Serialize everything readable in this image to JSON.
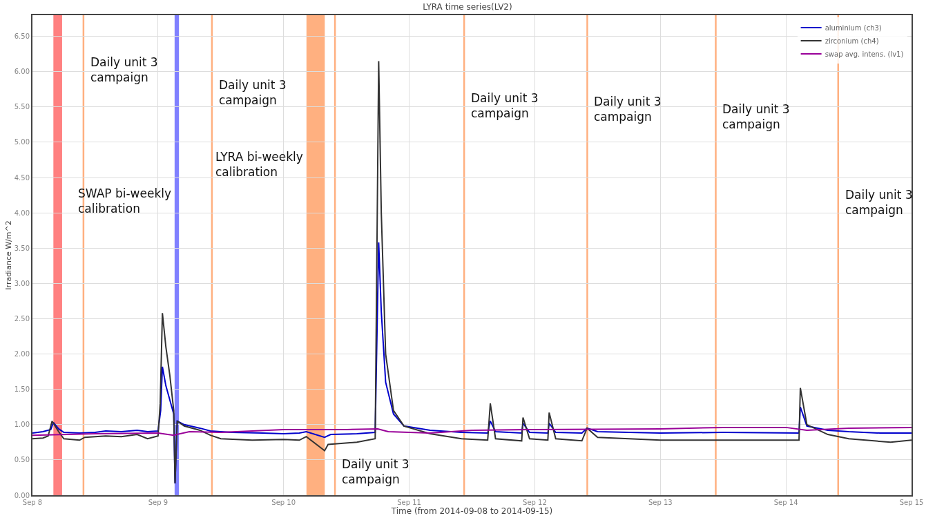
{
  "chart_data": {
    "type": "line",
    "title": "LYRA time series(LV2)",
    "xlabel": "Time (from 2014-09-08 to 2014-09-15)",
    "ylabel": "Irradiance W/m^2",
    "xlim": [
      "2014-09-08T00:00",
      "2014-09-15T00:00"
    ],
    "xticks": [
      {
        "value": "2014-09-08",
        "label": "Sep 8"
      },
      {
        "value": "2014-09-09",
        "label": "Sep 9"
      },
      {
        "value": "2014-09-10",
        "label": "Sep 10"
      },
      {
        "value": "2014-09-11",
        "label": "Sep 11"
      },
      {
        "value": "2014-09-12",
        "label": "Sep 12"
      },
      {
        "value": "2014-09-13",
        "label": "Sep 13"
      },
      {
        "value": "2014-09-14",
        "label": "Sep 14"
      },
      {
        "value": "2014-09-15",
        "label": "Sep 15"
      }
    ],
    "ylim": [
      0,
      6.8
    ],
    "yticks": [
      {
        "value": 0,
        "label": "0.00"
      },
      {
        "value": 0.5,
        "label": "0.50"
      },
      {
        "value": 1,
        "label": "1.00"
      },
      {
        "value": 1.5,
        "label": "1.50"
      },
      {
        "value": 2,
        "label": "2.00"
      },
      {
        "value": 2.5,
        "label": "2.50"
      },
      {
        "value": 3,
        "label": "3.00"
      },
      {
        "value": 3.5,
        "label": "3.50"
      },
      {
        "value": 4,
        "label": "4.00"
      },
      {
        "value": 4.5,
        "label": "4.50"
      },
      {
        "value": 5,
        "label": "5.00"
      },
      {
        "value": 5.5,
        "label": "5.50"
      },
      {
        "value": 6,
        "label": "6.00"
      },
      {
        "value": 6.5,
        "label": "6.50"
      }
    ],
    "grid": true,
    "legend": "top right",
    "marker": "none",
    "line_style": "solid",
    "series": [
      {
        "name": "aluminium (ch3)",
        "color": "#0000cc",
        "x": [
          "2014-09-08T00:00",
          "2014-09-08T02:00",
          "2014-09-08T03:30",
          "2014-09-08T04:00",
          "2014-09-08T05:00",
          "2014-09-08T06:00",
          "2014-09-08T09:00",
          "2014-09-08T12:00",
          "2014-09-08T14:00",
          "2014-09-08T17:00",
          "2014-09-08T20:00",
          "2014-09-08T22:00",
          "2014-09-09T00:00",
          "2014-09-09T00:30",
          "2014-09-09T00:50",
          "2014-09-09T01:30",
          "2014-09-09T02:15",
          "2014-09-09T03:00",
          "2014-09-09T03:15",
          "2014-09-09T03:40",
          "2014-09-09T05:00",
          "2014-09-09T08:00",
          "2014-09-09T10:00",
          "2014-09-09T14:00",
          "2014-09-09T20:00",
          "2014-09-10T00:00",
          "2014-09-10T03:00",
          "2014-09-10T04:20",
          "2014-09-10T07:50",
          "2014-09-10T09:00",
          "2014-09-10T14:00",
          "2014-09-10T17:30",
          "2014-09-10T18:10",
          "2014-09-10T18:40",
          "2014-09-10T19:30",
          "2014-09-10T21:00",
          "2014-09-10T23:00",
          "2014-09-11T04:00",
          "2014-09-11T10:00",
          "2014-09-11T15:00",
          "2014-09-11T15:30",
          "2014-09-11T16:30",
          "2014-09-11T21:30",
          "2014-09-11T21:45",
          "2014-09-11T23:00",
          "2014-09-12T02:30",
          "2014-09-12T02:45",
          "2014-09-12T04:00",
          "2014-09-12T09:00",
          "2014-09-12T10:00",
          "2014-09-12T12:00",
          "2014-09-13T00:00",
          "2014-09-13T12:00",
          "2014-09-14T02:30",
          "2014-09-14T02:45",
          "2014-09-14T04:00",
          "2014-09-14T08:00",
          "2014-09-14T12:00",
          "2014-09-14T18:00",
          "2014-09-15T00:00"
        ],
        "values": [
          0.88,
          0.9,
          0.93,
          1.03,
          0.94,
          0.89,
          0.88,
          0.89,
          0.91,
          0.9,
          0.92,
          0.9,
          0.91,
          1.2,
          1.82,
          1.55,
          1.35,
          1.15,
          0.17,
          1.05,
          1.0,
          0.95,
          0.91,
          0.89,
          0.88,
          0.87,
          0.88,
          0.9,
          0.82,
          0.86,
          0.87,
          0.89,
          3.58,
          2.6,
          1.6,
          1.15,
          0.98,
          0.92,
          0.89,
          0.88,
          1.05,
          0.9,
          0.88,
          1.02,
          0.89,
          0.88,
          1.02,
          0.89,
          0.88,
          0.95,
          0.9,
          0.88,
          0.89,
          0.88,
          1.25,
          0.98,
          0.92,
          0.9,
          0.88,
          0.88
        ]
      },
      {
        "name": "zirconium (ch4)",
        "color": "#333333",
        "x": [
          "2014-09-08T00:00",
          "2014-09-08T02:00",
          "2014-09-08T03:00",
          "2014-09-08T03:45",
          "2014-09-08T05:00",
          "2014-09-08T06:00",
          "2014-09-08T09:00",
          "2014-09-08T10:00",
          "2014-09-08T14:00",
          "2014-09-08T17:00",
          "2014-09-08T20:00",
          "2014-09-08T22:00",
          "2014-09-09T00:00",
          "2014-09-09T00:25",
          "2014-09-09T00:50",
          "2014-09-09T01:30",
          "2014-09-09T02:15",
          "2014-09-09T03:00",
          "2014-09-09T03:15",
          "2014-09-09T03:40",
          "2014-09-09T05:00",
          "2014-09-09T08:00",
          "2014-09-09T10:00",
          "2014-09-09T12:00",
          "2014-09-09T18:00",
          "2014-09-10T00:00",
          "2014-09-10T03:00",
          "2014-09-10T04:20",
          "2014-09-10T07:50",
          "2014-09-10T08:30",
          "2014-09-10T14:00",
          "2014-09-10T17:30",
          "2014-09-10T18:10",
          "2014-09-10T18:40",
          "2014-09-10T19:30",
          "2014-09-10T21:00",
          "2014-09-10T23:00",
          "2014-09-11T04:00",
          "2014-09-11T10:00",
          "2014-09-11T15:00",
          "2014-09-11T15:30",
          "2014-09-11T16:30",
          "2014-09-11T21:30",
          "2014-09-11T21:45",
          "2014-09-11T23:00",
          "2014-09-12T02:30",
          "2014-09-12T02:45",
          "2014-09-12T04:00",
          "2014-09-12T09:00",
          "2014-09-12T10:00",
          "2014-09-12T12:00",
          "2014-09-13T00:00",
          "2014-09-13T12:00",
          "2014-09-14T02:30",
          "2014-09-14T02:45",
          "2014-09-14T04:00",
          "2014-09-14T08:00",
          "2014-09-14T12:00",
          "2014-09-14T20:00",
          "2014-09-15T00:00"
        ],
        "values": [
          0.8,
          0.81,
          0.84,
          1.05,
          0.9,
          0.8,
          0.78,
          0.82,
          0.84,
          0.83,
          0.86,
          0.8,
          0.84,
          1.3,
          2.58,
          2.1,
          1.7,
          1.2,
          0.17,
          1.05,
          0.98,
          0.92,
          0.85,
          0.8,
          0.78,
          0.79,
          0.78,
          0.83,
          0.63,
          0.72,
          0.75,
          0.8,
          6.15,
          4.0,
          2.0,
          1.2,
          0.98,
          0.87,
          0.8,
          0.78,
          1.3,
          0.8,
          0.77,
          1.1,
          0.8,
          0.78,
          1.17,
          0.8,
          0.77,
          0.95,
          0.82,
          0.78,
          0.78,
          0.78,
          1.52,
          1.0,
          0.86,
          0.8,
          0.75,
          0.78
        ]
      },
      {
        "name": "swap avg. intens. (lv1)",
        "color": "#990099",
        "x": [
          "2014-09-08T00:00",
          "2014-09-08T12:00",
          "2014-09-09T00:00",
          "2014-09-09T03:00",
          "2014-09-09T06:00",
          "2014-09-09T12:00",
          "2014-09-10T00:00",
          "2014-09-10T12:00",
          "2014-09-10T18:00",
          "2014-09-10T20:00",
          "2014-09-11T04:00",
          "2014-09-11T12:00",
          "2014-09-12T00:00",
          "2014-09-13T00:00",
          "2014-09-13T12:00",
          "2014-09-14T00:00",
          "2014-09-14T04:00",
          "2014-09-14T12:00",
          "2014-09-15T00:00"
        ],
        "values": [
          0.85,
          0.87,
          0.88,
          0.85,
          0.9,
          0.89,
          0.93,
          0.93,
          0.94,
          0.9,
          0.88,
          0.92,
          0.93,
          0.94,
          0.96,
          0.96,
          0.92,
          0.95,
          0.96
        ]
      }
    ],
    "bands": [
      {
        "axis": "x",
        "from": "2014-09-08T04:00",
        "to": "2014-09-08T05:40",
        "color": "#ff8080"
      },
      {
        "axis": "x",
        "from": "2014-09-09T03:10",
        "to": "2014-09-09T04:00",
        "color": "#8080ff",
        "label": "SWAP bi-weekly\ncalibration"
      },
      {
        "axis": "x",
        "from": "2014-09-10T04:22",
        "to": "2014-09-10T07:52",
        "color": "#ffb080",
        "label": "LYRA bi-weekly\ncalibration"
      }
    ],
    "ref_lines": [
      {
        "axis": "x",
        "value": "2014-09-08T09:45",
        "color": "#ffb080",
        "label": "Daily unit 3\ncampaign"
      },
      {
        "axis": "x",
        "value": "2014-09-09T10:18",
        "color": "#ffb080",
        "label": "Daily unit 3\ncampaign"
      },
      {
        "axis": "x",
        "value": "2014-09-10T09:49",
        "color": "#ffb080",
        "label": "Daily unit 3\ncampaign"
      },
      {
        "axis": "x",
        "value": "2014-09-11T10:30",
        "color": "#ffb080",
        "label": "Daily unit 3\ncampaign"
      },
      {
        "axis": "x",
        "value": "2014-09-12T10:02",
        "color": "#ffb080",
        "label": "Daily unit 3\ncampaign"
      },
      {
        "axis": "x",
        "value": "2014-09-13T10:35",
        "color": "#ffb080",
        "label": "Daily unit 3\ncampaign"
      },
      {
        "axis": "x",
        "value": "2014-09-14T09:59",
        "color": "#ffb080",
        "label": "Daily unit 3\ncampaign"
      }
    ]
  }
}
